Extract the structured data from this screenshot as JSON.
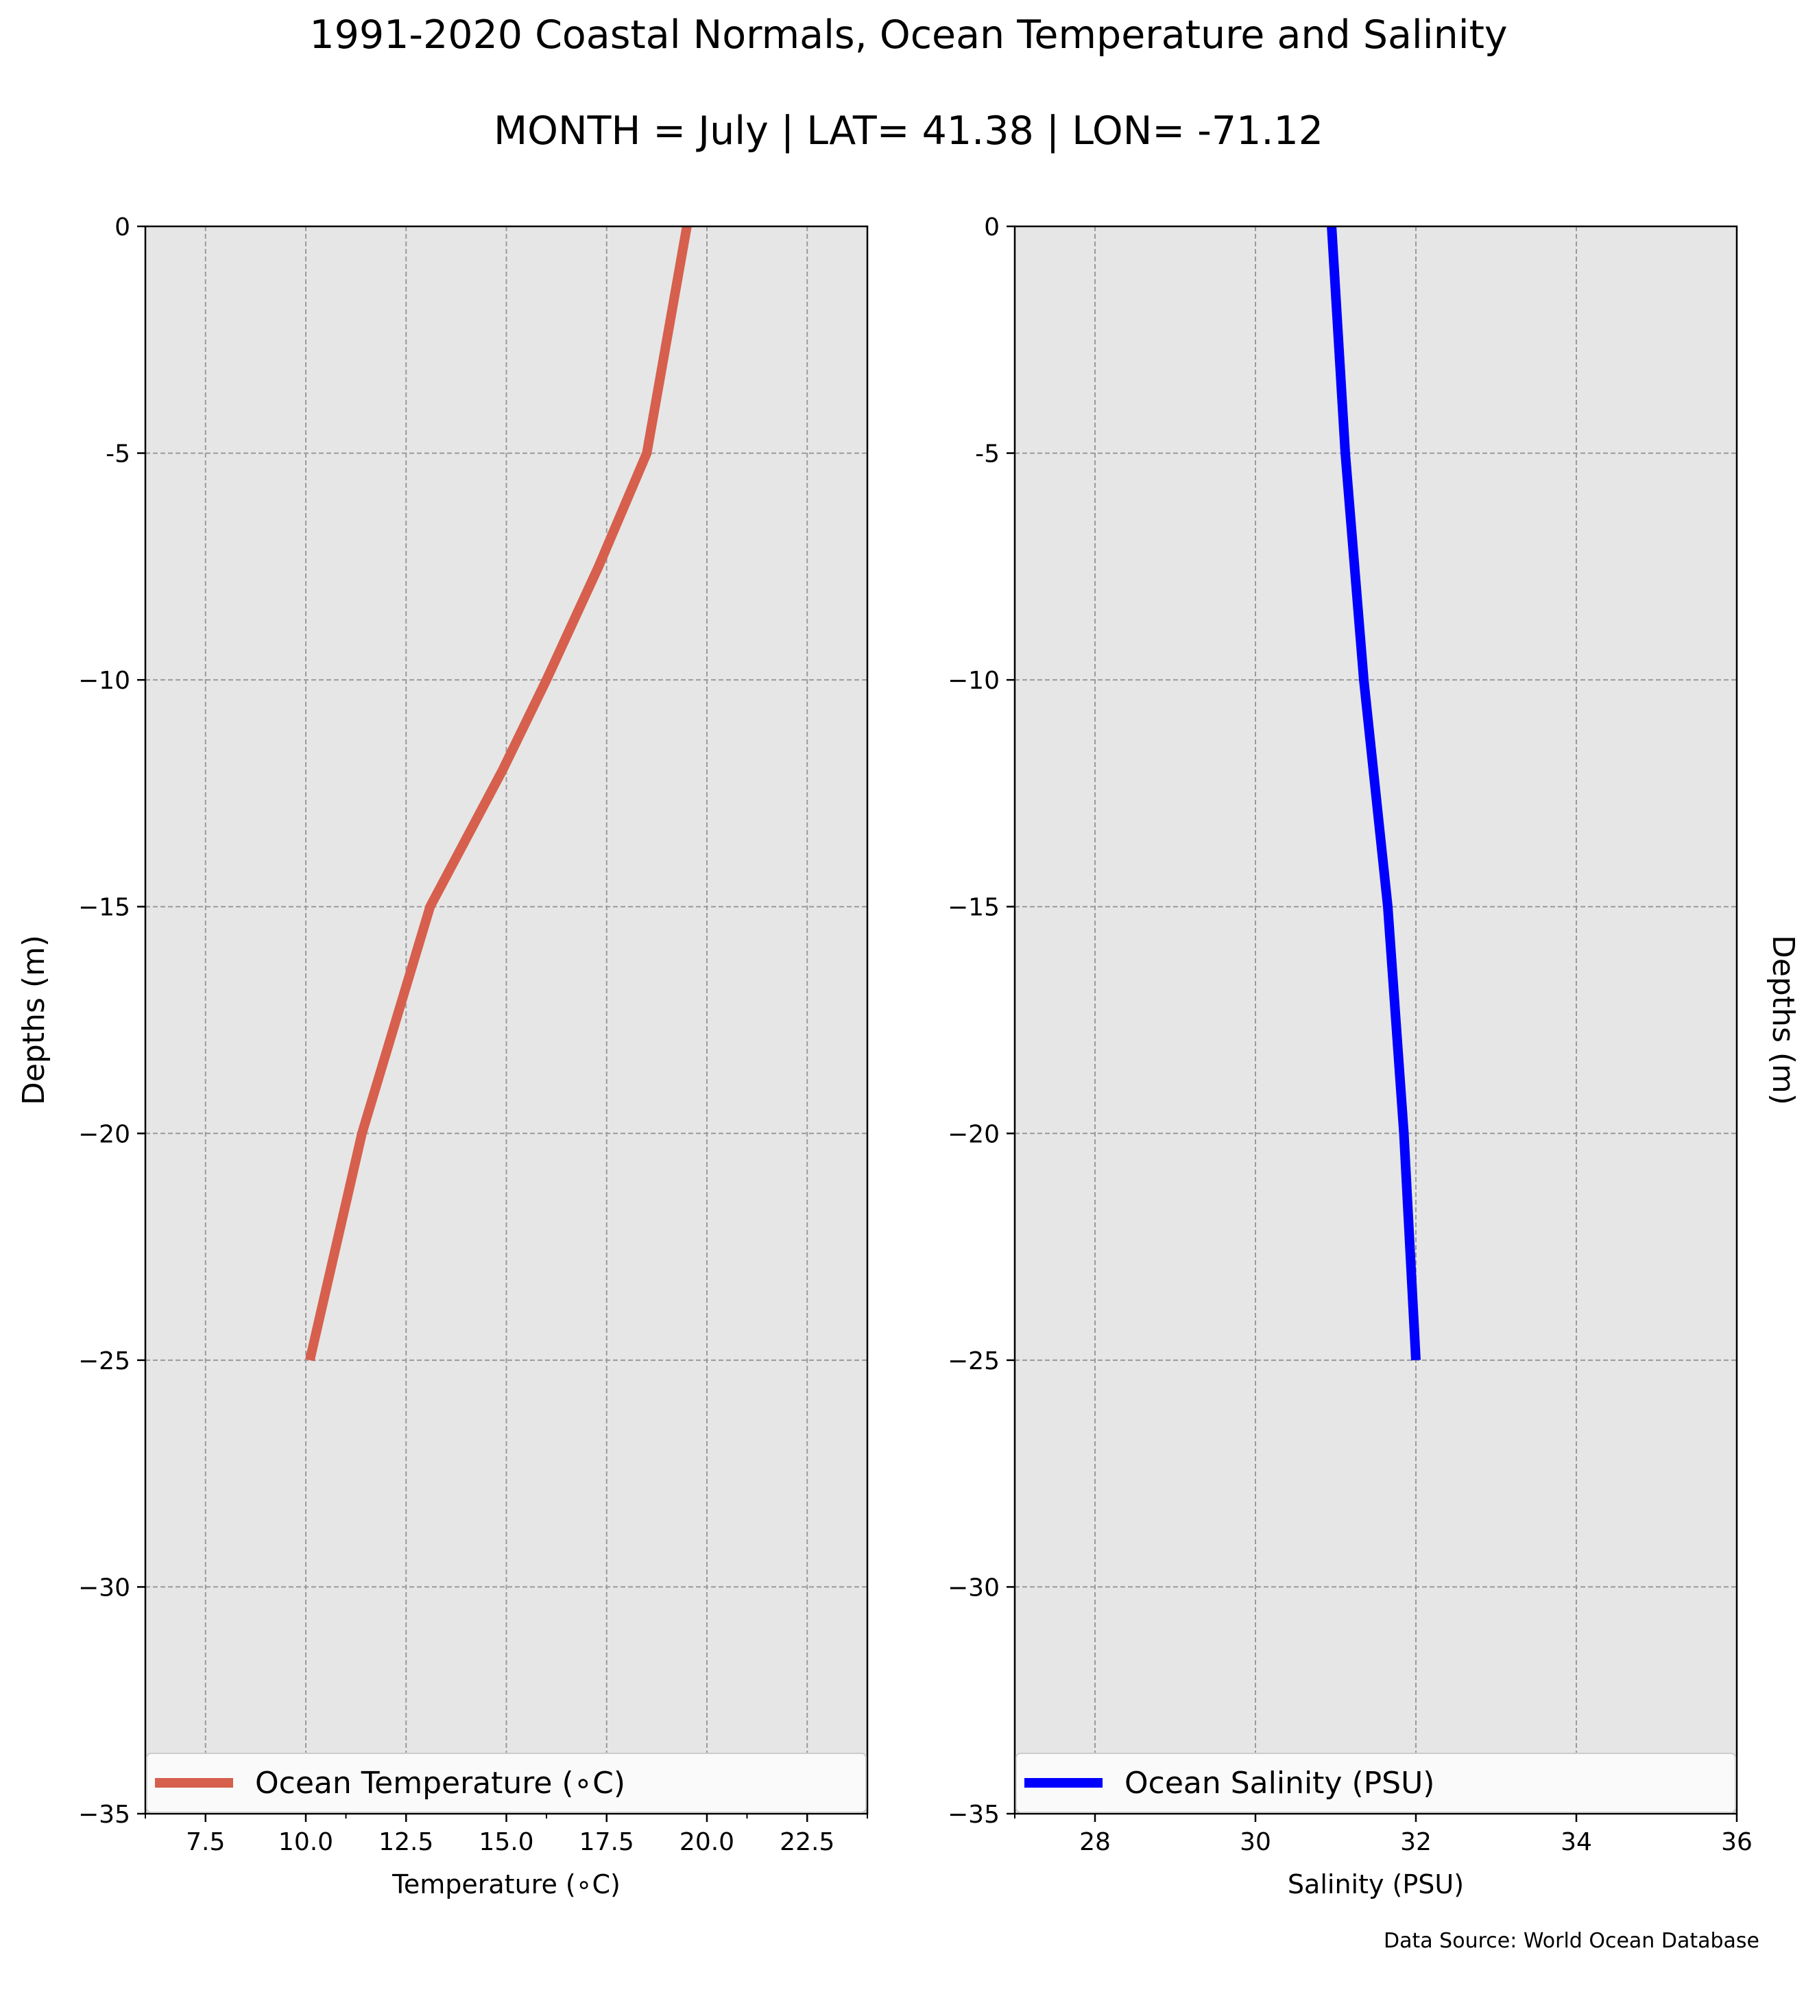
{
  "figure": {
    "title": "1991-2020 Coastal Normals, Ocean Temperature and Salinity",
    "subtitle": "MONTH = July | LAT= 41.38 | LON= -71.12",
    "source_note": "Data Source: World Ocean Database",
    "background_color": "#ffffff"
  },
  "chart_data": [
    {
      "type": "line",
      "xlabel": "Temperature ($^\\circ$C)",
      "xlabel_display": "Temperature (∘C)",
      "ylabel": "Depths (m)",
      "xlim": [
        6,
        24
      ],
      "ylim": [
        -35,
        0
      ],
      "x_ticks": [
        7.5,
        10.0,
        12.5,
        15.0,
        17.5,
        20.0,
        22.5
      ],
      "x_tick_labels": [
        "7.5",
        "10.0",
        "12.5",
        "15.0",
        "17.5",
        "20.0",
        "22.5"
      ],
      "x_minor_ticks": [
        6,
        11,
        16,
        21,
        24
      ],
      "y_ticks": [
        0,
        -5,
        -10,
        -15,
        -20,
        -25,
        -30,
        -35
      ],
      "y_tick_labels": [
        "0",
        "-5",
        "−10",
        "−15",
        "−20",
        "−25",
        "−30",
        "−35"
      ],
      "grid": true,
      "plot_background": "#e6e6e6",
      "legend": {
        "label": "Ocean Temperature (∘C)",
        "placement": "bottom"
      },
      "series": [
        {
          "name": "Ocean Temperature (∘C)",
          "color": "#d6604d",
          "x": [
            19.5,
            18.5,
            17.3,
            16.0,
            14.9,
            13.1,
            11.4,
            10.1
          ],
          "y": [
            0,
            -5,
            -7.5,
            -10,
            -12,
            -15,
            -20,
            -25
          ]
        }
      ]
    },
    {
      "type": "line",
      "xlabel": "Salinity (PSU)",
      "ylabel": "Depths (m)",
      "xlim": [
        27,
        36
      ],
      "ylim": [
        -35,
        0
      ],
      "x_ticks": [
        28,
        30,
        32,
        34,
        36
      ],
      "x_tick_labels": [
        "28",
        "30",
        "32",
        "34",
        "36"
      ],
      "x_minor_ticks": [
        27
      ],
      "y_ticks": [
        0,
        -5,
        -10,
        -15,
        -20,
        -25,
        -30,
        -35
      ],
      "y_tick_labels": [
        "0",
        "-5",
        "−10",
        "−15",
        "−20",
        "−25",
        "−30",
        "−35"
      ],
      "grid": true,
      "plot_background": "#e6e6e6",
      "legend": {
        "label": "Ocean Salinity (PSU)",
        "placement": "bottom"
      },
      "series": [
        {
          "name": "Ocean Salinity (PSU)",
          "color": "#0000ff",
          "x": [
            30.95,
            31.12,
            31.35,
            31.65,
            31.85,
            32.0
          ],
          "y": [
            0,
            -5,
            -10,
            -15,
            -20,
            -25
          ]
        }
      ]
    }
  ]
}
